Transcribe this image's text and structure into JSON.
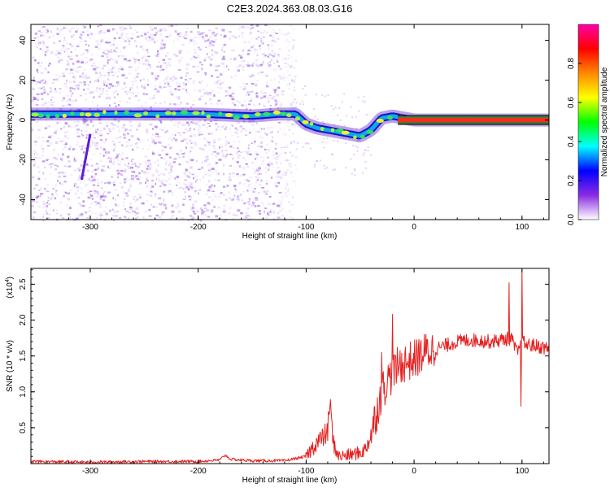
{
  "chart_data": [
    {
      "type": "heatmap",
      "title": "C2E3.2024.363.08.03.G16",
      "xlabel": "Height of straight line (km)",
      "ylabel": "Frequency (Hz)",
      "xlim": [
        -355,
        125
      ],
      "ylim": [
        -50,
        48
      ],
      "x_ticks": [
        "-300",
        "-200",
        "-100",
        "0",
        "100"
      ],
      "x_tick_values": [
        -300,
        -200,
        -100,
        0,
        100
      ],
      "y_ticks": [
        "40",
        "20",
        "0",
        "-20",
        "-40"
      ],
      "y_tick_values": [
        40,
        20,
        0,
        -20,
        -40
      ],
      "colorbar": {
        "label": "Normalized spectral amplitude",
        "range": [
          0,
          1
        ],
        "ticks": [
          "0.0",
          "0.2",
          "0.4",
          "0.6",
          "0.8"
        ],
        "tick_values": [
          0.0,
          0.2,
          0.4,
          0.6,
          0.8
        ],
        "colors": [
          "#ffffff",
          "#8a2be2",
          "#0000ff",
          "#00ffff",
          "#00ff00",
          "#ffff00",
          "#ff8800",
          "#ff0000",
          "#ff00aa"
        ]
      },
      "ridge_frequency": {
        "x": [
          -350,
          -300,
          -250,
          -200,
          -150,
          -125,
          -110,
          -100,
          -90,
          -80,
          -70,
          -60,
          -50,
          -40,
          -35,
          -30,
          -20,
          -10,
          0,
          50,
          100,
          125
        ],
        "y": [
          3,
          3,
          3,
          3,
          2,
          3,
          3,
          -2,
          -4,
          -5,
          -6,
          -7,
          -8,
          -5,
          -2,
          1,
          2,
          1,
          0,
          0,
          0,
          0
        ]
      },
      "background_noise_until_km": -125,
      "grid": false
    },
    {
      "type": "line",
      "xlabel": "Height of straight line (km)",
      "ylabel": "SNR (10 * v/v)",
      "y_scale_label": "(x10",
      "y_scale_exponent": "4",
      "xlim": [
        -355,
        125
      ],
      "ylim": [
        0,
        2.72
      ],
      "x_ticks": [
        "-300",
        "-200",
        "-100",
        "0",
        "100"
      ],
      "x_tick_values": [
        -300,
        -200,
        -100,
        0,
        100
      ],
      "y_ticks": [
        "0.5",
        "1.0",
        "1.5",
        "2.0",
        "2.5"
      ],
      "y_tick_values": [
        0.5,
        1.0,
        1.5,
        2.0,
        2.5
      ],
      "color": "#e62020",
      "series_points": {
        "x": [
          -355,
          -300,
          -250,
          -200,
          -180,
          -175,
          -170,
          -150,
          -120,
          -100,
          -95,
          -90,
          -85,
          -80,
          -78,
          -75,
          -70,
          -60,
          -50,
          -45,
          -40,
          -35,
          -30,
          -25,
          -20,
          -15,
          -10,
          0,
          10,
          20,
          30,
          40,
          50,
          60,
          70,
          80,
          90,
          95,
          98,
          100,
          105,
          110,
          125
        ],
        "y": [
          0.03,
          0.02,
          0.03,
          0.03,
          0.05,
          0.12,
          0.06,
          0.04,
          0.04,
          0.1,
          0.2,
          0.3,
          0.35,
          0.45,
          0.8,
          0.3,
          0.1,
          0.12,
          0.15,
          0.2,
          0.4,
          0.7,
          1.0,
          1.15,
          1.25,
          1.35,
          1.4,
          1.45,
          1.55,
          1.6,
          1.65,
          1.7,
          1.72,
          1.72,
          1.7,
          1.72,
          1.75,
          1.55,
          1.6,
          1.7,
          1.65,
          1.65,
          1.6
        ]
      },
      "spikes": [
        {
          "x": -78,
          "y": 0.78
        },
        {
          "x": -30,
          "y": 1.55
        },
        {
          "x": -20,
          "y": 2.08
        },
        {
          "x": 88,
          "y": 2.52
        },
        {
          "x": 100,
          "y": 2.72
        },
        {
          "x": 99,
          "y": 0.8
        }
      ],
      "grid": false
    }
  ]
}
